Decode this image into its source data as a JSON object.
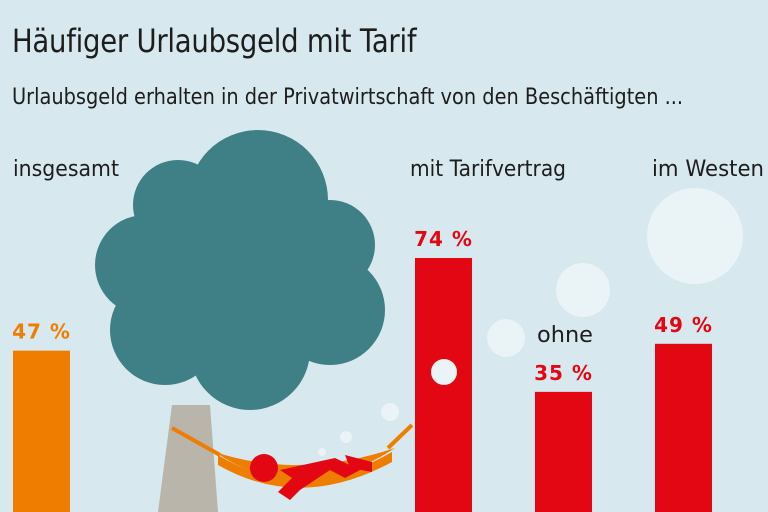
{
  "title": "Häufiger Urlaubsgeld mit Tarif",
  "subtitle": "Urlaubsgeld erhalten in der Privatwirtschaft von den Beschäftigten ...",
  "chart_data": {
    "type": "bar",
    "title": "Häufiger Urlaubsgeld mit Tarif",
    "subtitle": "Urlaubsgeld erhalten in der Privatwirtschaft von den Beschäftigten ...",
    "categories": [
      "insgesamt",
      "mit Tarifvertrag",
      "ohne",
      "im Westen"
    ],
    "values": [
      47,
      74,
      35,
      49
    ],
    "value_labels": [
      "47 %",
      "74 %",
      "35 %",
      "49 %"
    ],
    "unit": "%",
    "colors": [
      "#ef7d00",
      "#e30613",
      "#e30613",
      "#e30613"
    ],
    "label_colors": [
      "#ef7d00",
      "#e30613",
      "#e30613",
      "#e30613"
    ],
    "ylim": [
      0,
      100
    ],
    "grid": false,
    "legend": "none"
  },
  "colors": {
    "background": "#d7e8ee",
    "tree_crown": "#3f7f86",
    "tree_trunk": "#b9b5ab",
    "hammock": "#ef7d00",
    "person": "#e30613",
    "bubble": "#eef5f7"
  }
}
